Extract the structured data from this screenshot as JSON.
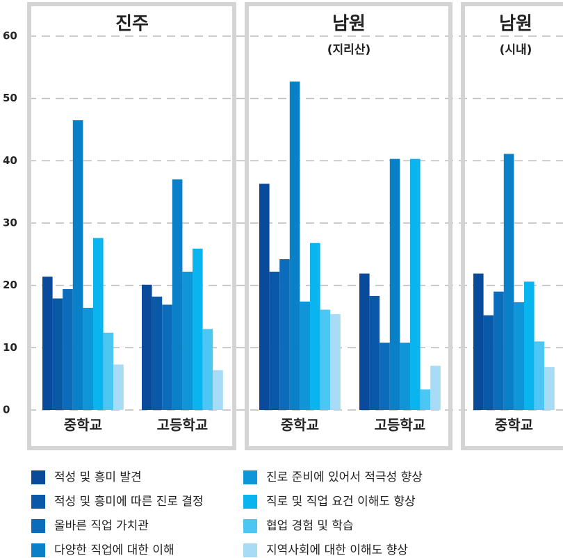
{
  "chart_data": {
    "type": "bar",
    "ylim": [
      0,
      60
    ],
    "yticks": [
      0,
      10,
      20,
      30,
      40,
      50,
      60
    ],
    "grid": true,
    "series": [
      {
        "name": "적성 및 흥미 발견",
        "color": "#0a4a9a"
      },
      {
        "name": "적성 및 흥미에 따른 진로 결정",
        "color": "#0a58a8"
      },
      {
        "name": "올바른 직업 가치관",
        "color": "#0b6cbc"
      },
      {
        "name": "다양한 직업에 대한 이해",
        "color": "#0a80c8"
      },
      {
        "name": "진로 준비에 있어서 적극성 향상",
        "color": "#0e96d8"
      },
      {
        "name": "직로 및 직업 요건 이해도 향상",
        "color": "#0ab4ee"
      },
      {
        "name": "협업 경험 및 학습",
        "color": "#4cc6f2"
      },
      {
        "name": "지역사회에 대한 이해도 향상",
        "color": "#a8dcf6"
      }
    ],
    "panels": [
      {
        "title": "진주",
        "categories": [
          "중학교",
          "고등학교"
        ],
        "values": [
          [
            21.4,
            17.9,
            19.4,
            46.5,
            16.4,
            27.6,
            12.4,
            7.3
          ],
          [
            20.1,
            18.2,
            16.9,
            37.0,
            22.2,
            25.9,
            13.0,
            6.4
          ]
        ]
      },
      {
        "title": "남원",
        "subtitle": "(지리산)",
        "categories": [
          "중학교",
          "고등학교"
        ],
        "values": [
          [
            36.3,
            22.2,
            24.2,
            52.7,
            17.4,
            26.8,
            16.1,
            15.4
          ],
          [
            21.9,
            18.3,
            10.8,
            40.3,
            10.8,
            40.3,
            3.3,
            7.1
          ]
        ]
      },
      {
        "title": "남원",
        "subtitle": "(시내)",
        "categories": [
          "중학교"
        ],
        "values": [
          [
            21.9,
            15.2,
            19.0,
            41.1,
            17.3,
            20.6,
            11.0,
            6.9
          ]
        ]
      }
    ]
  }
}
